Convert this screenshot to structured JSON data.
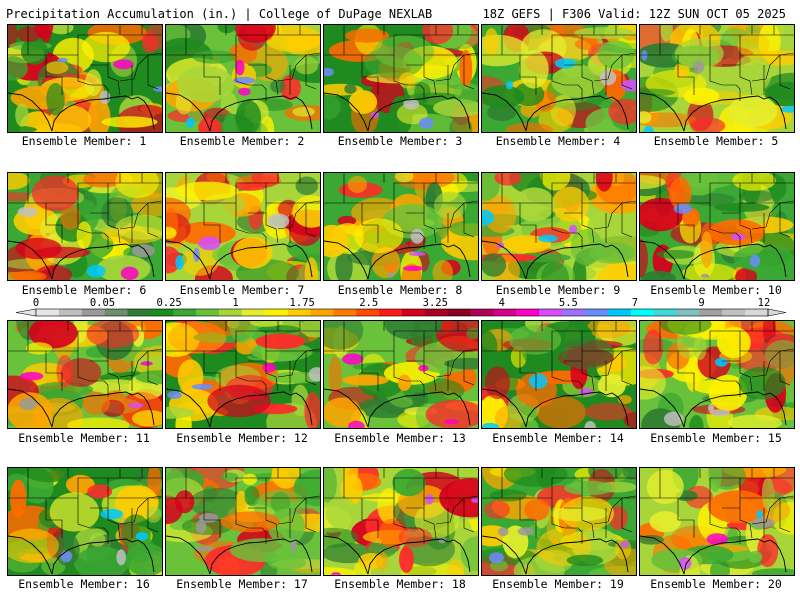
{
  "header": {
    "title": "Precipitation Accumulation (in.) | College of DuPage NEXLAB",
    "run_info": "18Z GEFS | F306 Valid: 12Z SUN OCT 05 2025"
  },
  "colorbar": {
    "labels": [
      "0",
      "0.05",
      "0.25",
      "1",
      "1.75",
      "2.5",
      "3.25",
      "4",
      "5.5",
      "7",
      "9",
      "12"
    ],
    "colors": [
      "#e6e6e6",
      "#bfbfbf",
      "#9a9a9a",
      "#6e8f6e",
      "#2e7d32",
      "#1b8f1b",
      "#3aa832",
      "#69c23a",
      "#a8d63a",
      "#e4ee2e",
      "#fff200",
      "#ffcc00",
      "#ffa500",
      "#ff7a00",
      "#ff4a00",
      "#ff1a1a",
      "#d6001c",
      "#a8001f",
      "#8b0020",
      "#b0005a",
      "#d6008b",
      "#ff00c8",
      "#d84cff",
      "#a070ff",
      "#6b8cff",
      "#00c8ff",
      "#00ffff",
      "#40d8d8",
      "#80c0c0",
      "#a0a0a0",
      "#c0c0c0",
      "#d8d8d8"
    ]
  },
  "members": [
    {
      "label": "Ensemble Member: 1"
    },
    {
      "label": "Ensemble Member: 2"
    },
    {
      "label": "Ensemble Member: 3"
    },
    {
      "label": "Ensemble Member: 4"
    },
    {
      "label": "Ensemble Member: 5"
    },
    {
      "label": "Ensemble Member: 6"
    },
    {
      "label": "Ensemble Member: 7"
    },
    {
      "label": "Ensemble Member: 8"
    },
    {
      "label": "Ensemble Member: 9"
    },
    {
      "label": "Ensemble Member: 10"
    },
    {
      "label": "Ensemble Member: 11"
    },
    {
      "label": "Ensemble Member: 12"
    },
    {
      "label": "Ensemble Member: 13"
    },
    {
      "label": "Ensemble Member: 14"
    },
    {
      "label": "Ensemble Member: 15"
    },
    {
      "label": "Ensemble Member: 16"
    },
    {
      "label": "Ensemble Member: 17"
    },
    {
      "label": "Ensemble Member: 18"
    },
    {
      "label": "Ensemble Member: 19"
    },
    {
      "label": "Ensemble Member: 20"
    }
  ]
}
